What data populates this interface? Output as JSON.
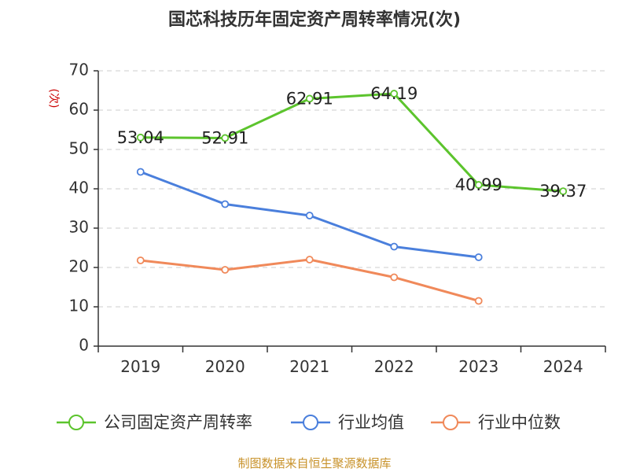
{
  "chart_data": {
    "type": "line",
    "title": "国芯科技历年固定资产周转率情况(次)",
    "ylabel": "(次)",
    "xlabel": "",
    "categories": [
      "2019",
      "2020",
      "2021",
      "2022",
      "2023",
      "2024"
    ],
    "ylim": [
      0,
      70
    ],
    "yticks": [
      0,
      10,
      20,
      30,
      40,
      50,
      60,
      70
    ],
    "grid": true,
    "legend_position": "bottom",
    "series": [
      {
        "name": "公司固定资产周转率",
        "color": "#5cc42d",
        "values": [
          53.04,
          52.91,
          62.91,
          64.19,
          40.99,
          39.37
        ],
        "labels": [
          "53.04",
          "52.91",
          "62.91",
          "64.19",
          "40.99",
          "39.37"
        ]
      },
      {
        "name": "行业均值",
        "color": "#4a7fdc",
        "values": [
          44.3,
          36.1,
          33.2,
          25.3,
          22.6,
          null
        ]
      },
      {
        "name": "行业中位数",
        "color": "#f0895a",
        "values": [
          21.8,
          19.4,
          22.0,
          17.5,
          11.5,
          null
        ]
      }
    ]
  },
  "footer": "制图数据来自恒生聚源数据库"
}
